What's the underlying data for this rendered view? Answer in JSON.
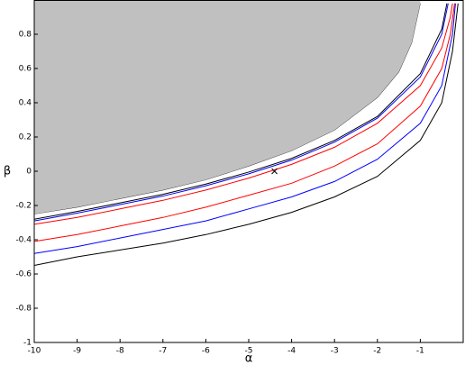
{
  "chart_data": {
    "type": "line",
    "x_label": "α",
    "y_label": "β",
    "xlim": [
      -10,
      0
    ],
    "ylim": [
      -1,
      1
    ],
    "xticks": [
      -10,
      -9,
      -8,
      -7,
      -6,
      -5,
      -4,
      -3,
      -2,
      -1
    ],
    "yticks": [
      -1,
      -0.8,
      -0.6,
      -0.4,
      -0.2,
      0,
      0.2,
      0.4,
      0.6,
      0.8
    ],
    "region": {
      "color": "#c0c0c0",
      "x": [
        -10,
        -9,
        -8,
        -7,
        -6,
        -5,
        -4,
        -3,
        -2,
        -1.5,
        -1.2,
        -1
      ],
      "y": [
        -0.25,
        -0.21,
        -0.16,
        -0.11,
        -0.05,
        0.03,
        0.12,
        0.24,
        0.43,
        0.58,
        0.75,
        0.98
      ]
    },
    "series": [
      {
        "color": "#000000",
        "x": [
          -10,
          -9,
          -8,
          -7,
          -6,
          -5,
          -4,
          -3,
          -2,
          -1,
          -0.5,
          -0.25,
          -0.12
        ],
        "values": [
          -0.55,
          -0.5,
          -0.46,
          -0.42,
          -0.37,
          -0.31,
          -0.24,
          -0.15,
          -0.03,
          0.18,
          0.4,
          0.7,
          0.98
        ]
      },
      {
        "color": "#0000ff",
        "x": [
          -10,
          -9,
          -8,
          -7,
          -6,
          -5,
          -4,
          -3,
          -2,
          -1,
          -0.5,
          -0.25,
          -0.18
        ],
        "values": [
          -0.48,
          -0.44,
          -0.39,
          -0.34,
          -0.29,
          -0.22,
          -0.15,
          -0.06,
          0.07,
          0.28,
          0.5,
          0.8,
          0.98
        ]
      },
      {
        "color": "#ff0000",
        "x": [
          -10,
          -9,
          -8,
          -7,
          -6,
          -5,
          -4,
          -3,
          -2,
          -1,
          -0.5,
          -0.3,
          -0.2
        ],
        "values": [
          -0.41,
          -0.37,
          -0.32,
          -0.27,
          -0.21,
          -0.14,
          -0.07,
          0.03,
          0.16,
          0.38,
          0.6,
          0.8,
          0.98
        ]
      },
      {
        "color": "#ff0000",
        "x": [
          -10,
          -9,
          -8,
          -7,
          -6,
          -5,
          -4,
          -3,
          -2,
          -1,
          -0.5,
          -0.3,
          -0.25
        ],
        "values": [
          -0.31,
          -0.27,
          -0.22,
          -0.17,
          -0.11,
          -0.04,
          0.04,
          0.14,
          0.28,
          0.5,
          0.72,
          0.9,
          0.98
        ]
      },
      {
        "color": "#0000ff",
        "x": [
          -10,
          -9,
          -8,
          -7,
          -6,
          -5,
          -4,
          -3,
          -2,
          -1,
          -0.5,
          -0.35
        ],
        "values": [
          -0.29,
          -0.245,
          -0.195,
          -0.145,
          -0.085,
          -0.015,
          0.065,
          0.17,
          0.31,
          0.55,
          0.8,
          0.98
        ]
      },
      {
        "color": "#000000",
        "x": [
          -10,
          -9,
          -8,
          -7,
          -6,
          -5,
          -4,
          -3,
          -2,
          -1,
          -0.5,
          -0.38
        ],
        "values": [
          -0.28,
          -0.235,
          -0.185,
          -0.135,
          -0.075,
          -0.005,
          0.075,
          0.18,
          0.32,
          0.57,
          0.83,
          0.98
        ]
      }
    ],
    "marker": {
      "x": -4.4,
      "y": 0,
      "color": "#000000"
    }
  }
}
